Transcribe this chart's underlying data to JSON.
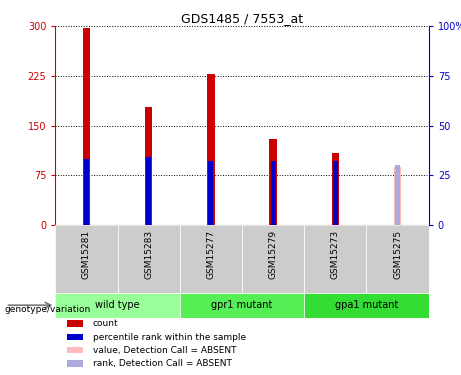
{
  "title": "GDS1485 / 7553_at",
  "samples": [
    "GSM15281",
    "GSM15283",
    "GSM15277",
    "GSM15279",
    "GSM15273",
    "GSM15275"
  ],
  "count_values": [
    298,
    178,
    228,
    130,
    108,
    88
  ],
  "rank_values": [
    33,
    34,
    32,
    32,
    32,
    30
  ],
  "absent_flags": [
    false,
    false,
    false,
    false,
    false,
    true
  ],
  "groups": [
    {
      "label": "wild type",
      "indices": [
        0,
        1
      ],
      "color": "#99ff99"
    },
    {
      "label": "gpr1 mutant",
      "indices": [
        2,
        3
      ],
      "color": "#55ee55"
    },
    {
      "label": "gpa1 mutant",
      "indices": [
        4,
        5
      ],
      "color": "#33dd33"
    }
  ],
  "ylim_left": [
    0,
    300
  ],
  "ylim_right": [
    0,
    100
  ],
  "yticks_left": [
    0,
    75,
    150,
    225,
    300
  ],
  "yticks_right": [
    0,
    25,
    50,
    75,
    100
  ],
  "count_bar_width": 0.12,
  "rank_bar_width": 0.08,
  "red_color": "#cc0000",
  "pink_color": "#ffbbbb",
  "blue_color": "#0000cc",
  "lightblue_color": "#aaaadd",
  "sample_bg_color": "#cccccc",
  "left_tick_color": "#cc0000",
  "right_tick_color": "#0000cc",
  "legend_items": [
    {
      "color": "#cc0000",
      "label": "count"
    },
    {
      "color": "#0000cc",
      "label": "percentile rank within the sample"
    },
    {
      "color": "#ffbbbb",
      "label": "value, Detection Call = ABSENT"
    },
    {
      "color": "#aaaadd",
      "label": "rank, Detection Call = ABSENT"
    }
  ]
}
